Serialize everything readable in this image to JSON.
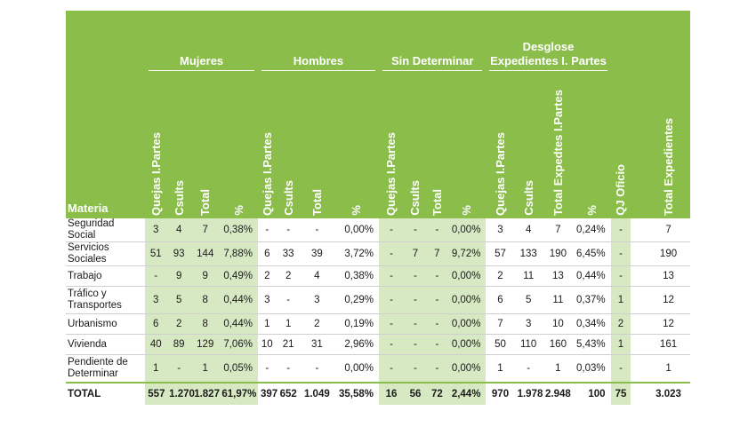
{
  "groups": {
    "mujeres": "Mujeres",
    "hombres": "Hombres",
    "sin_determinar": "Sin Determinar",
    "desglose": "Desglose Expedientes I. Partes"
  },
  "columns": {
    "materia": "Materia",
    "quejas": "Quejas I.Partes",
    "csults": "Csults",
    "total": "Total",
    "pct": "%",
    "total_expedtes": "Total Expedtes I.Partes",
    "qj_oficio": "QJ Oficio",
    "total_expedientes": "Total Expedientes"
  },
  "rows": [
    {
      "materia": "Seguridad Social",
      "m": [
        "3",
        "4",
        "7",
        "0,38%"
      ],
      "h": [
        "-",
        "-",
        "-",
        "0,00%"
      ],
      "s": [
        "-",
        "-",
        "-",
        "0,00%"
      ],
      "d": [
        "3",
        "4",
        "7",
        "0,24%"
      ],
      "qj": "-",
      "te": "7"
    },
    {
      "materia": "Servicios Sociales",
      "m": [
        "51",
        "93",
        "144",
        "7,88%"
      ],
      "h": [
        "6",
        "33",
        "39",
        "3,72%"
      ],
      "s": [
        "-",
        "7",
        "7",
        "9,72%"
      ],
      "d": [
        "57",
        "133",
        "190",
        "6,45%"
      ],
      "qj": "-",
      "te": "190"
    },
    {
      "materia": "Trabajo",
      "m": [
        "-",
        "9",
        "9",
        "0,49%"
      ],
      "h": [
        "2",
        "2",
        "4",
        "0,38%"
      ],
      "s": [
        "-",
        "-",
        "-",
        "0,00%"
      ],
      "d": [
        "2",
        "11",
        "13",
        "0,44%"
      ],
      "qj": "-",
      "te": "13"
    },
    {
      "materia": "Tráfico y Transportes",
      "m": [
        "3",
        "5",
        "8",
        "0,44%"
      ],
      "h": [
        "3",
        "-",
        "3",
        "0,29%"
      ],
      "s": [
        "-",
        "-",
        "-",
        "0,00%"
      ],
      "d": [
        "6",
        "5",
        "11",
        "0,37%"
      ],
      "qj": "1",
      "te": "12"
    },
    {
      "materia": "Urbanismo",
      "m": [
        "6",
        "2",
        "8",
        "0,44%"
      ],
      "h": [
        "1",
        "1",
        "2",
        "0,19%"
      ],
      "s": [
        "-",
        "-",
        "-",
        "0,00%"
      ],
      "d": [
        "7",
        "3",
        "10",
        "0,34%"
      ],
      "qj": "2",
      "te": "12"
    },
    {
      "materia": "Vivienda",
      "m": [
        "40",
        "89",
        "129",
        "7,06%"
      ],
      "h": [
        "10",
        "21",
        "31",
        "2,96%"
      ],
      "s": [
        "-",
        "-",
        "-",
        "0,00%"
      ],
      "d": [
        "50",
        "110",
        "160",
        "5,43%"
      ],
      "qj": "1",
      "te": "161"
    },
    {
      "materia": "Pendiente de Determinar",
      "m": [
        "1",
        "-",
        "1",
        "0,05%"
      ],
      "h": [
        "-",
        "-",
        "-",
        "0,00%"
      ],
      "s": [
        "-",
        "-",
        "-",
        "0,00%"
      ],
      "d": [
        "1",
        "-",
        "1",
        "0,03%"
      ],
      "qj": "-",
      "te": "1"
    }
  ],
  "total": {
    "materia": "TOTAL",
    "m": [
      "557",
      "1.270",
      "1.827",
      "61,97%"
    ],
    "h": [
      "397",
      "652",
      "1.049",
      "35,58%"
    ],
    "s": [
      "16",
      "56",
      "72",
      "2,44%"
    ],
    "d": [
      "970",
      "1.978",
      "2.948",
      "100"
    ],
    "qj": "75",
    "te": "3.023"
  }
}
